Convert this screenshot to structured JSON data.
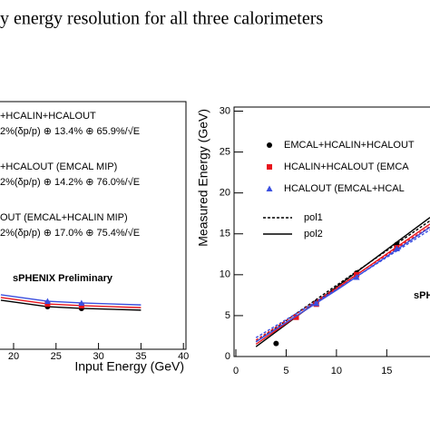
{
  "title": "y energy resolution for all three calorimeters",
  "chart_data": [
    {
      "type": "line",
      "xlabel": "Input Energy (GeV)",
      "xlim": [
        18.4,
        40.3
      ],
      "xticks": [
        20,
        25,
        30,
        35,
        40
      ],
      "ylim": [
        0,
        1
      ],
      "annotation": "sPHENIX Preliminary",
      "series": [
        {
          "name": "+HCALIN+HCALOUT",
          "formula": "2%(δp/p) ⊕ 13.4% ⊕ 65.9%/√E",
          "color": "#000000",
          "marker": "circle",
          "x": [
            18.5,
            24,
            28,
            35
          ],
          "values": [
            0.198,
            0.172,
            0.165,
            0.158
          ],
          "marker_x": [
            24,
            28
          ],
          "marker_values": [
            0.172,
            0.165
          ]
        },
        {
          "name": "+HCALOUT (EMCAL MIP)",
          "formula": "2%(δp/p) ⊕ 14.2% ⊕ 76.0%/√E",
          "color": "#e8141c",
          "marker": "square",
          "x": [
            18.5,
            24,
            28,
            35
          ],
          "values": [
            0.209,
            0.183,
            0.176,
            0.168
          ],
          "marker_x": [
            24,
            28
          ],
          "marker_values": [
            0.183,
            0.176
          ]
        },
        {
          "name": "OUT (EMCAL+HCALIN MIP)",
          "formula": "2%(δp/p) ⊕ 17.0% ⊕ 75.4%/√E",
          "color": "#3a4fe0",
          "marker": "triangle",
          "x": [
            18.5,
            24,
            28,
            35
          ],
          "values": [
            0.22,
            0.194,
            0.187,
            0.179
          ],
          "marker_x": [
            24,
            28
          ],
          "marker_values": [
            0.194,
            0.187
          ]
        }
      ]
    },
    {
      "type": "scatter",
      "ylabel": "Measured Energy (GeV)",
      "xlim": [
        0,
        19.3
      ],
      "xticks": [
        0,
        5,
        10,
        15
      ],
      "ylim": [
        0,
        30.5
      ],
      "yticks": [
        0,
        5,
        10,
        15,
        20,
        25,
        30
      ],
      "annotation": "sPH",
      "fit_names": [
        "pol1",
        "pol2"
      ],
      "fit_x": [
        2,
        10,
        19.3
      ],
      "series": [
        {
          "name": "EMCAL+HCALIN+HCALOUT",
          "color": "#000000",
          "marker": "circle",
          "x": [
            4,
            8,
            12,
            16
          ],
          "values": [
            1.6,
            6.6,
            10.2,
            13.7
          ],
          "pol1": [
            1.8,
            8.7,
            16.6
          ],
          "pol2": [
            1.2,
            8.5,
            17
          ]
        },
        {
          "name": "HCALIN+HCALOUT (EMCA",
          "color": "#e8141c",
          "marker": "square",
          "x": [
            6,
            8,
            12,
            16
          ],
          "values": [
            4.8,
            6.4,
            10.0,
            13.3
          ],
          "pol1": [
            2.0,
            8.4,
            15.9
          ],
          "pol2": [
            1.5,
            8.3,
            16.2
          ]
        },
        {
          "name": "HCALOUT (EMCAL+HCAL",
          "color": "#3a4fe0",
          "marker": "triangle",
          "x": [
            8,
            12,
            16
          ],
          "values": [
            6.5,
            9.7,
            13.2
          ],
          "pol1": [
            2.3,
            8.2,
            15.5
          ],
          "pol2": [
            1.8,
            8.1,
            15.8
          ]
        }
      ]
    }
  ]
}
